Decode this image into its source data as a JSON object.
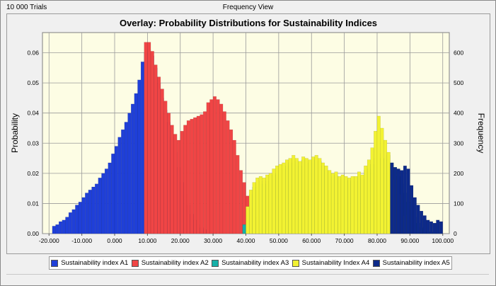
{
  "header": {
    "trials_label": "10 000 Trials",
    "view_label": "Frequency View"
  },
  "chart_data": {
    "type": "bar",
    "title": "Overlay: Probability Distributions for Sustainability Indices",
    "xlabel": "",
    "ylabel": "Probability",
    "ylabel_right": "Frequency",
    "xlim": [
      -22,
      102
    ],
    "ylim": [
      0,
      0.0667
    ],
    "ylim_right": [
      0,
      667
    ],
    "x_ticks": [
      "-20.000",
      "-10.000",
      "0.000",
      "10.000",
      "20.000",
      "30.000",
      "40.000",
      "50.000",
      "60.000",
      "70.000",
      "80.000",
      "90.000",
      "100.000"
    ],
    "x_tick_values": [
      -20,
      -10,
      0,
      10,
      20,
      30,
      40,
      50,
      60,
      70,
      80,
      90,
      100
    ],
    "y_ticks": [
      "0.00",
      "0.01",
      "0.02",
      "0.03",
      "0.04",
      "0.05",
      "0.06"
    ],
    "y_tick_values": [
      0,
      0.01,
      0.02,
      0.03,
      0.04,
      0.05,
      0.06
    ],
    "y_ticks_right": [
      "0",
      "100",
      "200",
      "300",
      "400",
      "500",
      "600"
    ],
    "grid": true,
    "legend_position": "bottom",
    "series": [
      {
        "name": "Sustainability index A1",
        "color": "#1f3fd8",
        "x": [
          -18.5,
          -17.5,
          -16.5,
          -15.5,
          -14.5,
          -13.5,
          -12.5,
          -11.5,
          -10.5,
          -9.5,
          -8.5,
          -7.5,
          -6.5,
          -5.5,
          -4.5,
          -3.5,
          -2.5,
          -1.5,
          -0.5,
          0.5,
          1.5,
          2.5,
          3.5,
          4.5,
          5.5,
          6.5,
          7.5,
          8.5,
          9.5,
          10.5,
          11.5,
          12.5,
          13.5,
          14.5,
          15.5,
          16.5,
          17.5,
          18.5,
          19.5,
          20.5,
          21.5,
          22.5,
          23.5,
          24.5,
          25.5,
          26.5,
          27.5,
          28.5,
          29.5,
          30.5
        ],
        "values": [
          0.0025,
          0.003,
          0.004,
          0.0045,
          0.0055,
          0.007,
          0.008,
          0.0095,
          0.0105,
          0.012,
          0.0135,
          0.0145,
          0.0155,
          0.0165,
          0.0185,
          0.02,
          0.0215,
          0.0235,
          0.0265,
          0.029,
          0.032,
          0.0345,
          0.037,
          0.04,
          0.043,
          0.0465,
          0.051,
          0.057,
          0.06,
          0.061,
          0.059,
          0.055,
          0.05,
          0.045,
          0.041,
          0.037,
          0.032,
          0.027,
          0.022,
          0.017,
          0.013,
          0.0095,
          0.0065,
          0.0045,
          0.003,
          0.002,
          0.0014,
          0.001,
          0.0006,
          0.0003
        ]
      },
      {
        "name": "Sustainability index A2",
        "color": "#f04545",
        "x": [
          9.5,
          10.5,
          11.5,
          12.5,
          13.5,
          14.5,
          15.5,
          16.5,
          17.5,
          18.5,
          19.5,
          20.5,
          21.5,
          22.5,
          23.5,
          24.5,
          25.5,
          26.5,
          27.5,
          28.5,
          29.5,
          30.5,
          31.5,
          32.5,
          33.5,
          34.5,
          35.5,
          36.5,
          37.5,
          38.5,
          39.5,
          40.5,
          41.5,
          42.5,
          43.5,
          44.5,
          45.5,
          46.5
        ],
        "values": [
          0.0635,
          0.0635,
          0.0605,
          0.056,
          0.052,
          0.048,
          0.044,
          0.04,
          0.036,
          0.033,
          0.031,
          0.034,
          0.036,
          0.0375,
          0.038,
          0.0385,
          0.039,
          0.0395,
          0.0405,
          0.0435,
          0.0445,
          0.0455,
          0.0445,
          0.043,
          0.0405,
          0.0375,
          0.0345,
          0.031,
          0.026,
          0.021,
          0.017,
          0.0125,
          0.0085,
          0.0055,
          0.0035,
          0.002,
          0.0012,
          0.0006
        ]
      },
      {
        "name": "Sustainability index A3",
        "color": "#16b0a8",
        "x": [
          39.5,
          40.5,
          41.5,
          42.5,
          43.5,
          44.5,
          45.5,
          46.5,
          47.5,
          48.5,
          49.5,
          50.5,
          51.5,
          52.5,
          53.5,
          54.5,
          55.5,
          56.5,
          57.5,
          58.5,
          59.5,
          60.5,
          61.5,
          62.5,
          63.5,
          64.5,
          65.5,
          66.5,
          67.5,
          68.5,
          69.5,
          70.5,
          71.5,
          72.5,
          73.5,
          74.5,
          75.5,
          76.5,
          77.5,
          78.5,
          79.5,
          80.5,
          81.5,
          82.5,
          83.5,
          84.5,
          85.5,
          86.5,
          87.5,
          88.5,
          89.5,
          90.5,
          91.5,
          92.5,
          93.5,
          94.5,
          95.5,
          96.5,
          97.5,
          98.5,
          99.5
        ],
        "values": [
          0.003,
          0.008,
          0.013,
          0.0155,
          0.017,
          0.0175,
          0.0165,
          0.0175,
          0.018,
          0.0195,
          0.02,
          0.021,
          0.0215,
          0.0225,
          0.0235,
          0.0245,
          0.024,
          0.0225,
          0.0245,
          0.024,
          0.0235,
          0.0245,
          0.025,
          0.024,
          0.0225,
          0.021,
          0.02,
          0.019,
          0.0195,
          0.018,
          0.0185,
          0.018,
          0.0175,
          0.018,
          0.0175,
          0.019,
          0.018,
          0.021,
          0.0215,
          0.023,
          0.025,
          0.0265,
          0.025,
          0.0245,
          0.026,
          0.0235,
          0.022,
          0.019,
          0.0165,
          0.0135,
          0.0105,
          0.008,
          0.0055,
          0.0035,
          0.002,
          0.0012,
          0.0008,
          0.0005,
          0.0003,
          0.0002,
          0.0001
        ]
      },
      {
        "name": "Sustainability Index A4",
        "color": "#f2f232",
        "x": [
          40.5,
          41.5,
          42.5,
          43.5,
          44.5,
          45.5,
          46.5,
          47.5,
          48.5,
          49.5,
          50.5,
          51.5,
          52.5,
          53.5,
          54.5,
          55.5,
          56.5,
          57.5,
          58.5,
          59.5,
          60.5,
          61.5,
          62.5,
          63.5,
          64.5,
          65.5,
          66.5,
          67.5,
          68.5,
          69.5,
          70.5,
          71.5,
          72.5,
          73.5,
          74.5,
          75.5,
          76.5,
          77.5,
          78.5,
          79.5,
          80.5,
          81.5,
          82.5,
          83.5,
          84.5,
          85.5,
          86.5,
          87.5,
          88.5
        ],
        "values": [
          0.009,
          0.0145,
          0.017,
          0.0185,
          0.019,
          0.0185,
          0.0195,
          0.02,
          0.0215,
          0.0225,
          0.023,
          0.0235,
          0.0245,
          0.025,
          0.026,
          0.025,
          0.024,
          0.0255,
          0.025,
          0.0245,
          0.0255,
          0.026,
          0.025,
          0.0235,
          0.0225,
          0.021,
          0.02,
          0.0205,
          0.019,
          0.0195,
          0.019,
          0.0185,
          0.019,
          0.019,
          0.0205,
          0.0195,
          0.0225,
          0.0245,
          0.0285,
          0.034,
          0.039,
          0.035,
          0.031,
          0.027,
          0.023,
          0.018,
          0.013,
          0.009,
          0.006
        ]
      },
      {
        "name": "Sustainability index A5",
        "color": "#0d2a8a",
        "x": [
          84.5,
          85.5,
          86.5,
          87.5,
          88.5,
          89.5,
          90.5,
          91.5,
          92.5,
          93.5,
          94.5,
          95.5,
          96.5,
          97.5,
          98.5,
          99.5
        ],
        "values": [
          0.0235,
          0.022,
          0.0215,
          0.021,
          0.0225,
          0.0215,
          0.016,
          0.012,
          0.0095,
          0.0075,
          0.006,
          0.0045,
          0.004,
          0.0035,
          0.0045,
          0.004
        ]
      }
    ]
  }
}
